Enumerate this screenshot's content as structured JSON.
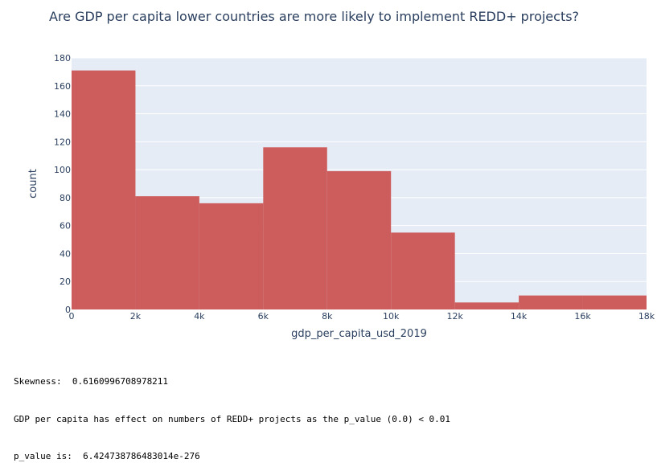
{
  "chart_data": {
    "type": "bar",
    "title": "Are GDP per capita lower countries are more likely to implement REDD+ projects?",
    "xlabel": "gdp_per_capita_usd_2019",
    "ylabel": "count",
    "bins": [
      {
        "x0": 0,
        "x1": 2000,
        "count": 171
      },
      {
        "x0": 2000,
        "x1": 4000,
        "count": 81
      },
      {
        "x0": 4000,
        "x1": 6000,
        "count": 76
      },
      {
        "x0": 6000,
        "x1": 8000,
        "count": 116
      },
      {
        "x0": 8000,
        "x1": 10000,
        "count": 99
      },
      {
        "x0": 10000,
        "x1": 12000,
        "count": 55
      },
      {
        "x0": 12000,
        "x1": 14000,
        "count": 5
      },
      {
        "x0": 14000,
        "x1": 16000,
        "count": 10
      },
      {
        "x0": 16000,
        "x1": 18000,
        "count": 10
      }
    ],
    "xlim": [
      0,
      18000
    ],
    "ylim": [
      0,
      180
    ],
    "x_ticks": [
      {
        "value": 0,
        "label": "0"
      },
      {
        "value": 2000,
        "label": "2k"
      },
      {
        "value": 4000,
        "label": "4k"
      },
      {
        "value": 6000,
        "label": "6k"
      },
      {
        "value": 8000,
        "label": "8k"
      },
      {
        "value": 10000,
        "label": "10k"
      },
      {
        "value": 12000,
        "label": "12k"
      },
      {
        "value": 14000,
        "label": "14k"
      },
      {
        "value": 16000,
        "label": "16k"
      },
      {
        "value": 18000,
        "label": "18k"
      }
    ],
    "y_ticks": [
      {
        "value": 0,
        "label": "0"
      },
      {
        "value": 20,
        "label": "20"
      },
      {
        "value": 40,
        "label": "40"
      },
      {
        "value": 60,
        "label": "60"
      },
      {
        "value": 80,
        "label": "80"
      },
      {
        "value": 100,
        "label": "100"
      },
      {
        "value": 120,
        "label": "120"
      },
      {
        "value": 140,
        "label": "140"
      },
      {
        "value": 160,
        "label": "160"
      },
      {
        "value": 180,
        "label": "180"
      }
    ],
    "grid": true,
    "colors": {
      "bar": "#cd5c5c",
      "plot_bg": "#e5ecf6",
      "grid": "#ffffff",
      "text": "#2a3f5f"
    }
  },
  "stats": {
    "skewness": "Skewness:  0.6160996708978211",
    "effect": "GDP per capita has effect on numbers of REDD+ projects as the p_value (0.0) < 0.01",
    "p_value": "p_value is:  6.424738786483014e-276"
  }
}
